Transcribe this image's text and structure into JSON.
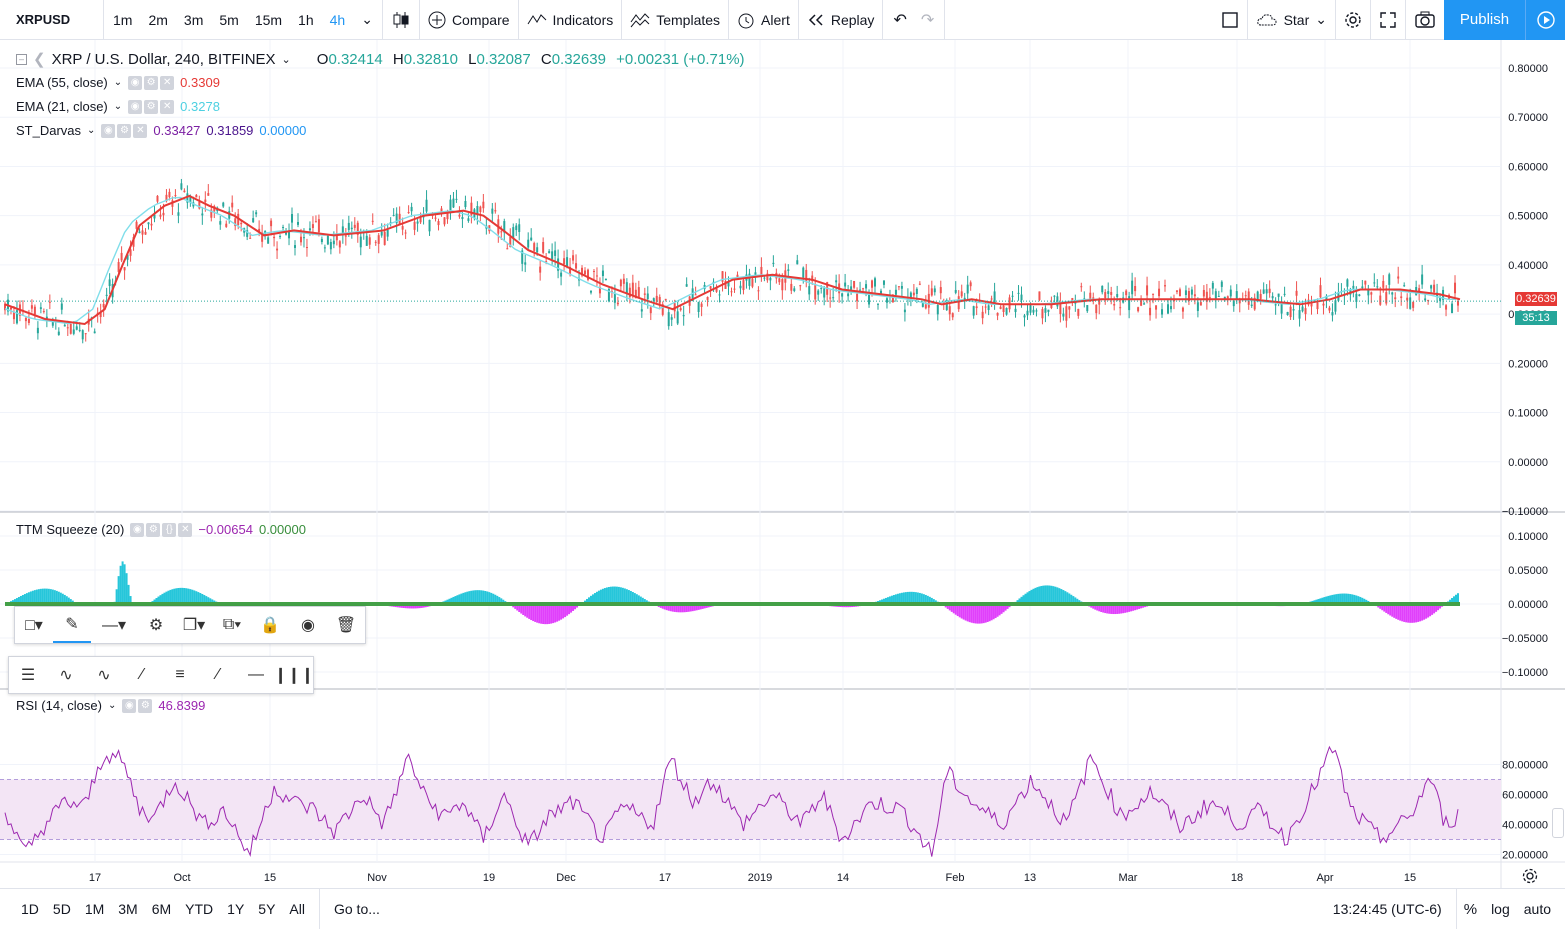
{
  "topbar": {
    "symbol": "XRPUSD",
    "timeframes": [
      "1m",
      "2m",
      "3m",
      "5m",
      "15m",
      "1h",
      "4h"
    ],
    "active_timeframe": "4h",
    "compare": "Compare",
    "indicators": "Indicators",
    "templates": "Templates",
    "alert": "Alert",
    "replay": "Replay",
    "star": "Star",
    "publish": "Publish"
  },
  "legend": {
    "title": "XRP / U.S. Dollar, 240, BITFINEX",
    "o_label": "O",
    "o": "0.32414",
    "h_label": "H",
    "h": "0.32810",
    "l_label": "L",
    "l": "0.32087",
    "c_label": "C",
    "c": "0.32639",
    "change": "+0.00231 (+0.71%)",
    "ema55_name": "EMA (55, close)",
    "ema55_value": "0.3309",
    "ema21_name": "EMA (21, close)",
    "ema21_value": "0.3278",
    "darvas_name": "ST_Darvas",
    "darvas_v1": "0.33427",
    "darvas_v2": "0.31859",
    "darvas_v3": "0.00000",
    "ttm_name": "TTM Squeeze (20)",
    "ttm_v1": "−0.00654",
    "ttm_v2": "0.00000",
    "rsi_name": "RSI (14, close)",
    "rsi_value": "46.8399"
  },
  "price_badge": "0.32639",
  "countdown": "35:13",
  "bottombar": {
    "ranges": [
      "1D",
      "5D",
      "1M",
      "3M",
      "6M",
      "YTD",
      "1Y",
      "5Y",
      "All"
    ],
    "goto": "Go to...",
    "clock": "13:24:45 (UTC-6)",
    "percent": "%",
    "log": "log",
    "auto": "auto"
  },
  "chart_data": [
    {
      "type": "line",
      "title": "XRP / U.S. Dollar, 240, BITFINEX",
      "x_ticks": [
        "17",
        "Oct",
        "15",
        "Nov",
        "19",
        "Dec",
        "17",
        "2019",
        "14",
        "Feb",
        "13",
        "Mar",
        "18",
        "Apr",
        "15"
      ],
      "y_ticks": [
        "0.80000",
        "0.70000",
        "0.60000",
        "0.50000",
        "0.40000",
        "0.30000",
        "0.20000",
        "0.10000",
        "0.00000",
        "−0.10000"
      ],
      "ylim": [
        -0.1,
        0.8
      ],
      "series": [
        {
          "name": "EMA (55, close)",
          "color": "#e53935",
          "x": [
            0,
            40,
            80,
            100,
            118,
            135,
            160,
            185,
            205,
            230,
            260,
            290,
            330,
            380,
            420,
            460,
            480,
            500,
            525,
            560,
            600,
            640,
            670,
            700,
            730,
            770,
            810,
            840,
            880,
            920,
            940,
            970,
            1000,
            1050,
            1100,
            1150,
            1200,
            1250,
            1300,
            1330,
            1360,
            1400,
            1440,
            1460
          ],
          "y": [
            0.32,
            0.29,
            0.28,
            0.31,
            0.4,
            0.48,
            0.52,
            0.54,
            0.52,
            0.5,
            0.46,
            0.47,
            0.46,
            0.47,
            0.5,
            0.51,
            0.5,
            0.47,
            0.43,
            0.4,
            0.36,
            0.33,
            0.31,
            0.34,
            0.37,
            0.38,
            0.37,
            0.35,
            0.34,
            0.33,
            0.32,
            0.33,
            0.32,
            0.32,
            0.33,
            0.33,
            0.33,
            0.33,
            0.32,
            0.33,
            0.35,
            0.35,
            0.34,
            0.33
          ]
        }
      ]
    },
    {
      "type": "bar",
      "title": "TTM Squeeze (20)",
      "y_ticks": [
        "0.10000",
        "0.05000",
        "0.00000",
        "−0.05000",
        "−0.10000"
      ],
      "ylim": [
        -0.1,
        0.1
      ]
    },
    {
      "type": "line",
      "title": "RSI (14, close)",
      "y_ticks": [
        "80.00000",
        "60.00000",
        "40.00000",
        "20.00000"
      ],
      "ylim": [
        15,
        95
      ],
      "band": [
        30,
        70
      ],
      "series": [
        {
          "name": "RSI (14, close)",
          "color": "#9c27b0",
          "x": [
            0,
            20,
            40,
            60,
            80,
            100,
            118,
            135,
            150,
            170,
            185,
            200,
            220,
            245,
            270,
            290,
            310,
            330,
            360,
            380,
            405,
            420,
            440,
            460,
            480,
            500,
            525,
            545,
            570,
            600,
            620,
            650,
            668,
            690,
            710,
            740,
            770,
            800,
            820,
            840,
            870,
            900,
            930,
            945,
            970,
            1000,
            1030,
            1065,
            1090,
            1120,
            1150,
            1180,
            1210,
            1240,
            1260,
            1285,
            1310,
            1333,
            1350,
            1380,
            1410,
            1430,
            1445,
            1460
          ],
          "y": [
            50,
            20,
            40,
            55,
            52,
            88,
            82,
            50,
            45,
            70,
            55,
            40,
            50,
            20,
            65,
            55,
            50,
            35,
            60,
            40,
            85,
            60,
            45,
            55,
            30,
            60,
            25,
            45,
            55,
            30,
            52,
            40,
            85,
            55,
            70,
            40,
            60,
            40,
            60,
            30,
            55,
            50,
            20,
            75,
            55,
            40,
            70,
            40,
            85,
            45,
            62,
            38,
            55,
            40,
            50,
            30,
            60,
            92,
            50,
            30,
            45,
            72,
            40,
            47
          ]
        }
      ]
    }
  ]
}
